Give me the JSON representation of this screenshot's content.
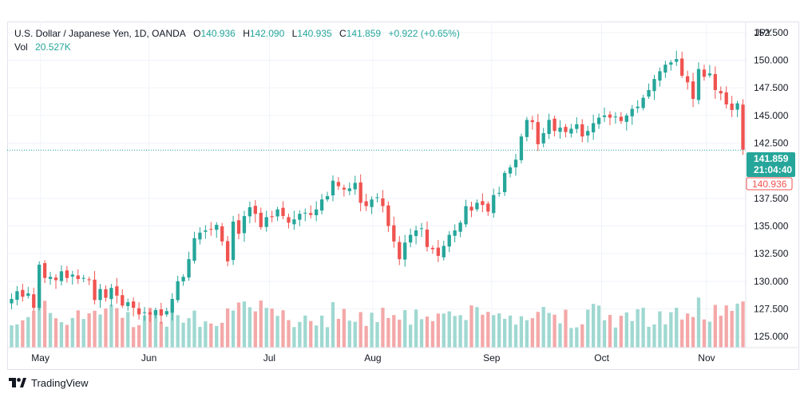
{
  "legend": {
    "symbol": "U.S. Dollar / Japanese Yen, 1D, OANDA",
    "o_label": "O",
    "o_value": "140.936",
    "h_label": "H",
    "h_value": "142.090",
    "l_label": "L",
    "l_value": "140.935",
    "c_label": "C",
    "c_value": "141.859",
    "change": "+0.922 (+0.65%)",
    "vol_label": "Vol",
    "vol_value": "20.527K"
  },
  "price_axis": {
    "unit": "JPY",
    "ticks": [
      "152.500",
      "150.000",
      "147.500",
      "145.000",
      "142.500",
      "137.500",
      "135.000",
      "132.500",
      "130.000",
      "127.500",
      "125.000"
    ],
    "last_price_label": "141.859",
    "countdown_label": "21:04:40",
    "open_price_label": "140.936"
  },
  "footer": {
    "brand": "TradingView"
  },
  "colors": {
    "up": "#26a69a",
    "down": "#ef5350",
    "vol_up": "#9fd8d1",
    "vol_down": "#f4a8a8",
    "grid": "#f0f3fa"
  },
  "chart_data": {
    "type": "candlestick",
    "instrument": "USD/JPY",
    "interval": "1D",
    "x_labels": [
      "May",
      "Jun",
      "Jul",
      "Aug",
      "Sep",
      "Oct",
      "Nov"
    ],
    "y_range": [
      124.0,
      153.5
    ],
    "grid": true,
    "last_price": 141.859,
    "open_price": 140.936,
    "closes": [
      128.4,
      129.1,
      128.6,
      128.9,
      127.6,
      131.5,
      130.3,
      130.4,
      130.1,
      130.9,
      130.3,
      130.6,
      130.2,
      130.3,
      130.1,
      128.3,
      129.3,
      128.5,
      129.4,
      128.7,
      127.8,
      128.1,
      127.6,
      127.0,
      127.2,
      127.0,
      127.4,
      126.9,
      127.3,
      128.4,
      130.0,
      130.4,
      132.0,
      133.9,
      134.4,
      134.6,
      134.7,
      135.1,
      133.6,
      131.8,
      135.4,
      134.3,
      135.9,
      136.7,
      136.1,
      134.9,
      135.8,
      135.8,
      136.5,
      135.9,
      135.3,
      135.6,
      136.1,
      136.2,
      136.0,
      136.5,
      137.4,
      137.7,
      139.1,
      138.6,
      138.3,
      138.4,
      138.9,
      137.1,
      136.8,
      137.4,
      137.6,
      136.8,
      135.0,
      133.6,
      132.0,
      133.5,
      134.2,
      134.6,
      134.8,
      133.1,
      132.9,
      132.3,
      133.2,
      134.2,
      134.6,
      135.3,
      136.8,
      136.4,
      137.1,
      136.9,
      136.3,
      137.8,
      138.0,
      139.8,
      140.3,
      141.0,
      143.1,
      144.6,
      144.4,
      142.4,
      143.4,
      144.6,
      143.6,
      143.9,
      143.5,
      143.8,
      144.2,
      143.1,
      143.6,
      144.3,
      144.8,
      145.0,
      144.8,
      144.9,
      144.5,
      145.0,
      145.6,
      145.8,
      146.6,
      147.3,
      148.3,
      149.0,
      149.6,
      149.8,
      150.1,
      148.6,
      148.0,
      146.5,
      149.2,
      148.5,
      148.8,
      147.3,
      147.0,
      146.0,
      145.5,
      146.1,
      141.9
    ]
  }
}
